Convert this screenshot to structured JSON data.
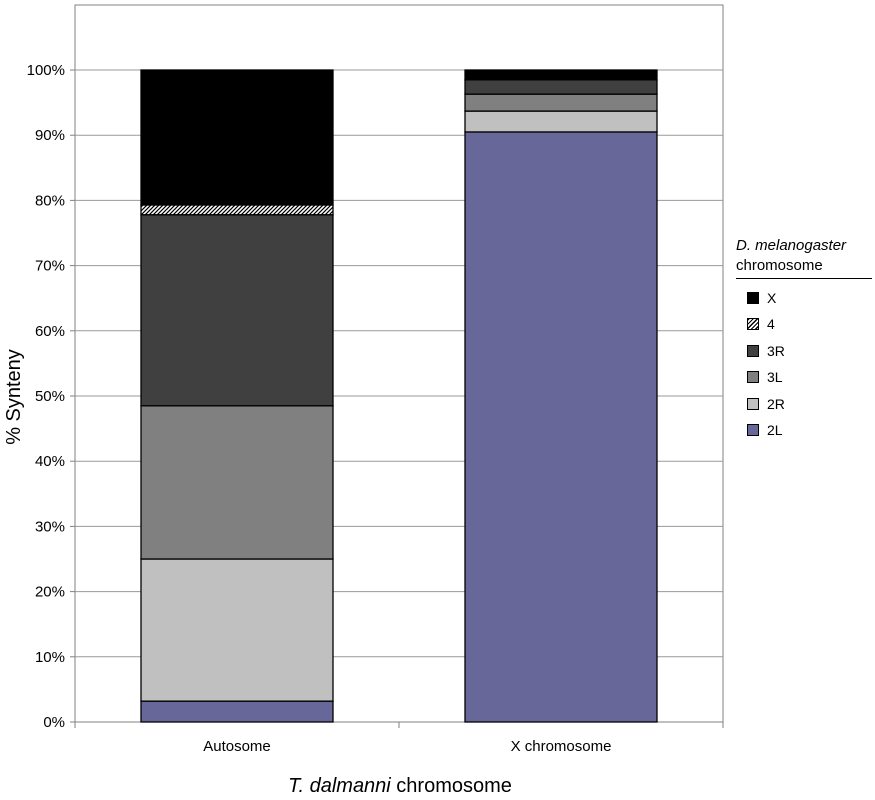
{
  "chart_data": {
    "type": "bar",
    "stacked": true,
    "normalized": true,
    "categories": [
      "Autosome",
      "X chromosome"
    ],
    "series": [
      {
        "name": "2L",
        "color": "#67679a",
        "pattern": "solid",
        "values": [
          3.2,
          90.5
        ]
      },
      {
        "name": "2R",
        "color": "#c0c0c0",
        "pattern": "solid",
        "values": [
          21.8,
          3.2
        ]
      },
      {
        "name": "3L",
        "color": "#808080",
        "pattern": "solid",
        "values": [
          23.5,
          2.6
        ]
      },
      {
        "name": "3R",
        "color": "#404040",
        "pattern": "solid",
        "values": [
          29.3,
          2.2
        ]
      },
      {
        "name": "4",
        "color": "#ffffff",
        "pattern": "hatch",
        "values": [
          1.5,
          0.0
        ]
      },
      {
        "name": "X",
        "color": "#000000",
        "pattern": "solid",
        "values": [
          20.7,
          1.5
        ]
      }
    ],
    "ylabel": "% Synteny",
    "xlabel_italic": "T. dalmanni",
    "xlabel_rest": " chromosome",
    "ylim": [
      0,
      100
    ],
    "yticks": [
      "0%",
      "10%",
      "20%",
      "30%",
      "40%",
      "50%",
      "60%",
      "70%",
      "80%",
      "90%",
      "100%"
    ],
    "grid": true,
    "legend": {
      "title_italic": "D. melanogaster",
      "title_rest": "chromosome",
      "placement": "right",
      "entries": [
        "X",
        "4",
        "3R",
        "3L",
        "2R",
        "2L"
      ]
    }
  }
}
